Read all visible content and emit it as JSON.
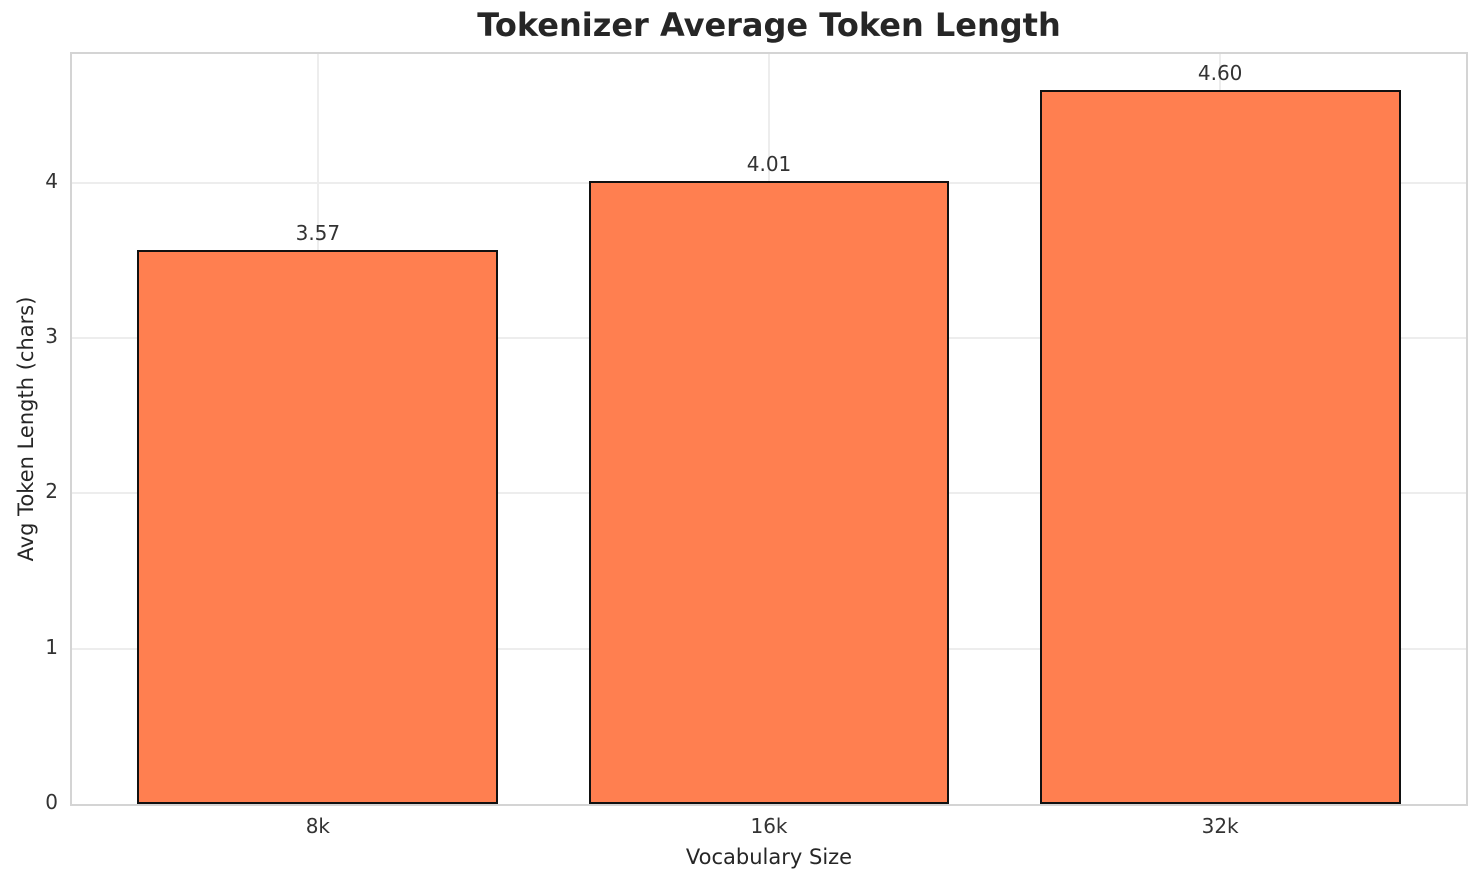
{
  "chart_data": {
    "type": "bar",
    "title": "Tokenizer Average Token Length",
    "xlabel": "Vocabulary Size",
    "ylabel": "Avg Token Length (chars)",
    "categories": [
      "8k",
      "16k",
      "32k"
    ],
    "values": [
      3.57,
      4.01,
      4.6
    ],
    "value_labels": [
      "3.57",
      "4.01",
      "4.60"
    ],
    "yticks": [
      0,
      1,
      2,
      3,
      4
    ],
    "ylim": [
      0,
      4.83
    ],
    "grid": true,
    "legend": "none",
    "bar_color": "#FF7F50",
    "bar_edge_color": "#111111",
    "grid_color": "#ededed",
    "spine_color": "#d4d4d4",
    "title_color": "#262626",
    "tick_label_color": "#333333"
  }
}
